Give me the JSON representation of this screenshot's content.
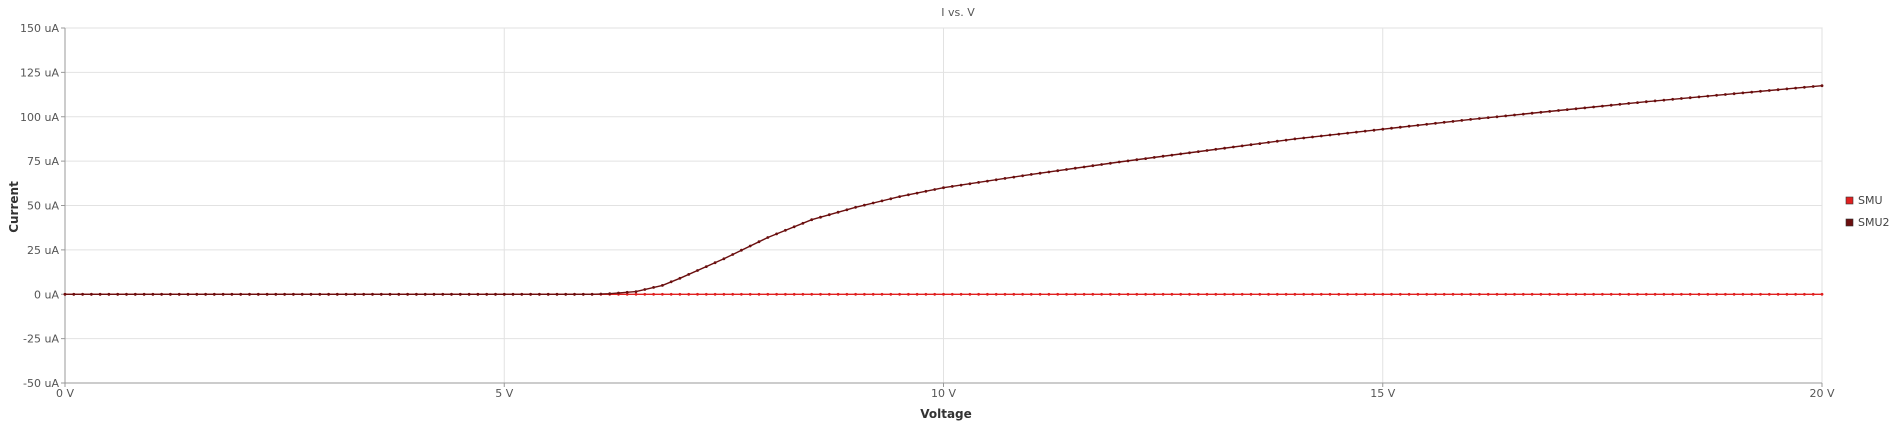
{
  "chart_data": {
    "type": "line",
    "title": "I vs. V",
    "xlabel": "Voltage",
    "ylabel": "Current",
    "xlim": [
      0,
      20
    ],
    "ylim": [
      -50,
      150
    ],
    "x_ticks": [
      0,
      5,
      10,
      15,
      20
    ],
    "x_tick_labels": [
      "0 V",
      "5 V",
      "10 V",
      "15 V",
      "20 V"
    ],
    "y_ticks": [
      -50,
      -25,
      0,
      25,
      50,
      75,
      100,
      125,
      150
    ],
    "y_tick_labels": [
      "-50 uA",
      "-25 uA",
      "0 uA",
      "25 uA",
      "50 uA",
      "75 uA",
      "100 uA",
      "125 uA",
      "150 uA"
    ],
    "grid": true,
    "legend_position": "right",
    "series": [
      {
        "name": "SMU",
        "color": "#e02020",
        "x": [
          0,
          2,
          4,
          6,
          8,
          10,
          12,
          14,
          16,
          18,
          20
        ],
        "values": [
          0,
          0,
          0,
          0,
          0,
          0,
          0,
          0,
          0,
          0,
          0
        ]
      },
      {
        "name": "SMU2",
        "color": "#6b0f0f",
        "x": [
          0,
          5,
          6,
          6.2,
          6.5,
          6.8,
          7,
          7.5,
          8,
          8.5,
          9,
          9.5,
          10,
          11,
          12,
          13,
          14,
          15,
          16,
          17,
          18,
          19,
          20
        ],
        "values": [
          0,
          0,
          0,
          0.3,
          1.5,
          5,
          9,
          20,
          32,
          42,
          49,
          55,
          60,
          67.5,
          74.5,
          81,
          87.5,
          93,
          98.5,
          103.5,
          108.5,
          113,
          117.5
        ]
      }
    ]
  }
}
